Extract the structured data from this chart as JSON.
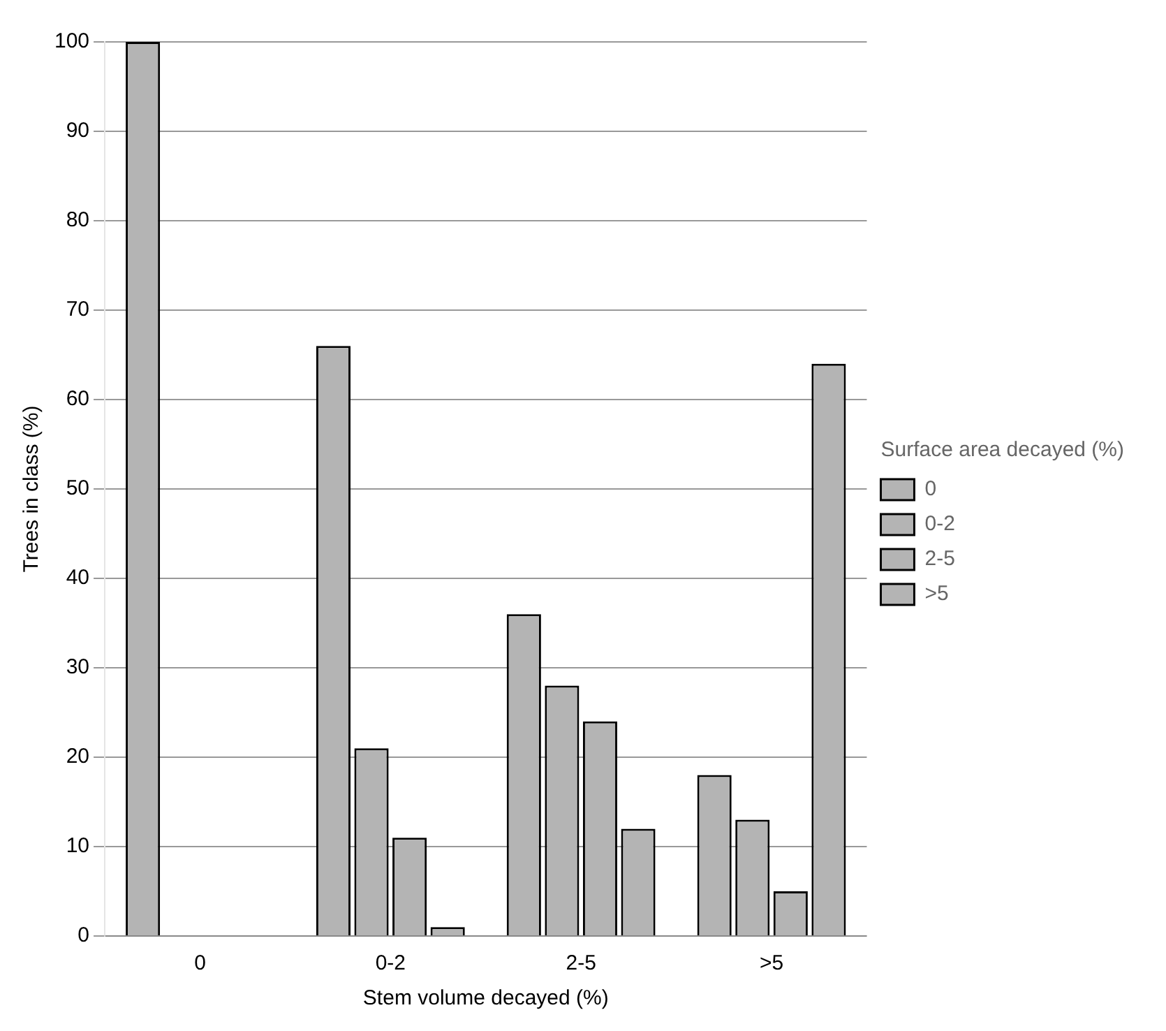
{
  "chart_data": {
    "type": "bar",
    "categories": [
      "0",
      "0-2",
      "2-5",
      ">5"
    ],
    "xlabel": "Stem volume decayed (%)",
    "ylabel": "Trees in class (%)",
    "legend_title": "Surface area decayed (%)",
    "series": [
      {
        "name": "0",
        "color": "#b4b4b4",
        "values": [
          100,
          66,
          36,
          18
        ]
      },
      {
        "name": "0-2",
        "color": "#b4b4b4",
        "values": [
          0,
          21,
          28,
          13
        ]
      },
      {
        "name": "2-5",
        "color": "#b4b4b4",
        "values": [
          0,
          11,
          24,
          5
        ]
      },
      {
        "name": ">5",
        "color": "#b4b4b4",
        "values": [
          0,
          1,
          12,
          64
        ]
      }
    ],
    "ylim": [
      0,
      100
    ],
    "yticks": [
      0,
      10,
      20,
      30,
      40,
      50,
      60,
      70,
      80,
      90,
      100
    ],
    "grid": "y",
    "legend": "right"
  }
}
